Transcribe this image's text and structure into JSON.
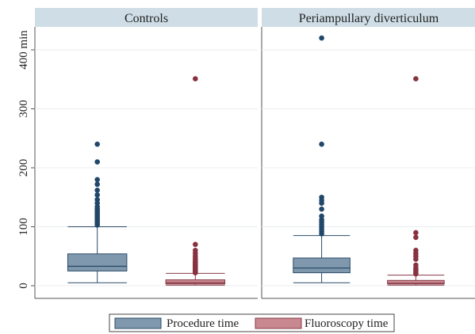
{
  "chart_data": {
    "type": "boxplot",
    "ylabel": "min",
    "ylim": [
      -15,
      435
    ],
    "yticks": [
      0,
      100,
      200,
      300,
      400
    ],
    "ytick_labels": [
      "0",
      "100",
      "200",
      "300",
      "400 min"
    ],
    "colors": {
      "procedure": "#7f98ad",
      "procedure_edge": "#2b4b6a",
      "procedure_outlier": "#21476b",
      "fluoroscopy": "#c7898f",
      "fluoroscopy_edge": "#8a3a47",
      "fluoroscopy_outlier": "#87323f",
      "panel_header": "#cfdee6"
    },
    "legend": {
      "position": "bottom",
      "entries": [
        {
          "key": "procedure",
          "label": "Procedure time"
        },
        {
          "key": "fluoroscopy",
          "label": "Fluoroscopy time"
        }
      ]
    },
    "panels": [
      {
        "title": "Controls",
        "boxes": [
          {
            "series": "procedure",
            "min": 5,
            "q1": 25,
            "median": 33,
            "q3": 54,
            "max": 100,
            "outliers": [
              103,
              106,
              109,
              112,
              115,
              118,
              121,
              124,
              127,
              130,
              134,
              140,
              146,
              154,
              162,
              172,
              180,
              210,
              240
            ]
          },
          {
            "series": "fluoroscopy",
            "min": 1,
            "q1": 3,
            "median": 5,
            "q3": 10,
            "max": 21,
            "outliers": [
              22,
              24,
              26,
              28,
              30,
              32,
              34,
              36,
              38,
              40,
              43,
              46,
              50,
              55,
              60,
              70,
              351
            ]
          }
        ]
      },
      {
        "title": "Periampullary diverticulum",
        "boxes": [
          {
            "series": "procedure",
            "min": 5,
            "q1": 22,
            "median": 30,
            "q3": 47,
            "max": 85,
            "outliers": [
              88,
              92,
              96,
              100,
              104,
              108,
              112,
              118,
              130,
              140,
              145,
              150,
              240,
              420
            ]
          },
          {
            "series": "fluoroscopy",
            "min": 1,
            "q1": 3,
            "median": 4,
            "q3": 9,
            "max": 18,
            "outliers": [
              20,
              23,
              26,
              30,
              35,
              45,
              50,
              55,
              60,
              82,
              90,
              351
            ]
          }
        ]
      }
    ]
  }
}
